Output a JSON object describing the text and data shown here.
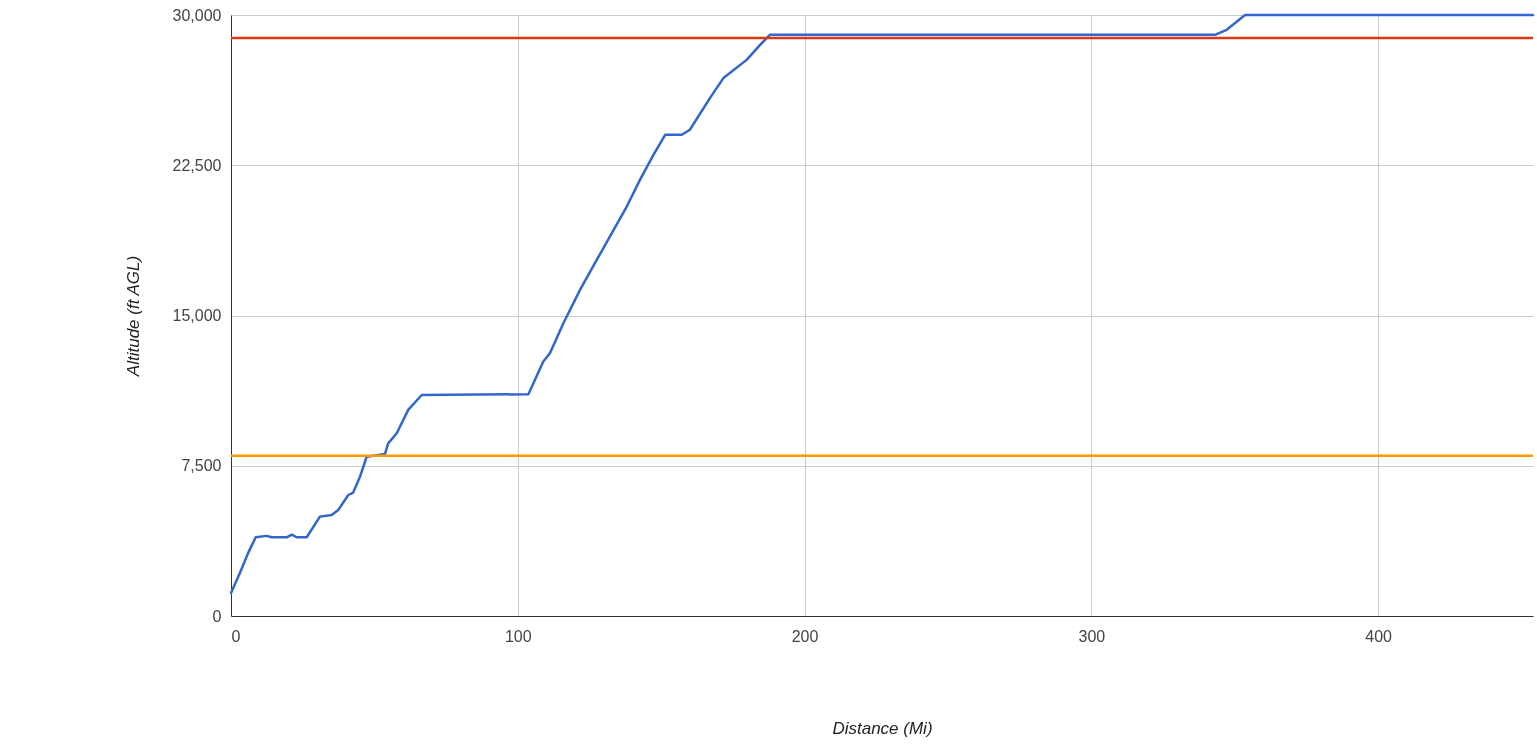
{
  "chart_data": {
    "type": "line",
    "xlabel": "Distance (Mi)",
    "ylabel": "Altitude (ft AGL)",
    "x": [
      0,
      3.1,
      6.0,
      8.6,
      12.4,
      14.2,
      19.4,
      21.2,
      22.9,
      26.4,
      31.0,
      35.1,
      37.4,
      40.9,
      42.6,
      45.0,
      47.3,
      53.7,
      54.8,
      57.8,
      61.8,
      66.5,
      103.7,
      108.9,
      111.2,
      115.9,
      121.7,
      126.9,
      132.1,
      138.0,
      142.6,
      147.3,
      151.4,
      157.2,
      160.0,
      167.0,
      171.7,
      179.8,
      184.5,
      187.9,
      343.1,
      347.2,
      353.6,
      454
    ],
    "series": [
      {
        "color": "#3366cc",
        "values": [
          1150,
          2150,
          3150,
          3930,
          4000,
          3930,
          3930,
          4060,
          3930,
          3930,
          4960,
          5040,
          5290,
          6040,
          6160,
          6960,
          7950,
          8090,
          8620,
          9120,
          10290,
          11030,
          11070,
          12700,
          13120,
          14610,
          16280,
          17610,
          18940,
          20440,
          21770,
          23020,
          24020,
          24020,
          24270,
          25850,
          26850,
          27760,
          28510,
          29010,
          29010,
          29260,
          30000,
          30000
        ]
      }
    ],
    "ref_lines": [
      {
        "axis": "y",
        "value": 28850,
        "color": "#dc3912"
      },
      {
        "axis": "y",
        "value": 8000,
        "color": "#ff9900"
      }
    ],
    "xlim": [
      0,
      454
    ],
    "xticks": [
      0,
      100,
      200,
      300,
      400
    ],
    "ylim": [
      0,
      30000
    ],
    "yticks": [
      0,
      {
        "value": 7500,
        "label": "7,500"
      },
      {
        "value": 15000,
        "label": "15,000"
      },
      {
        "value": 22500,
        "label": "22,500"
      },
      {
        "value": 30000,
        "label": "30,000"
      }
    ],
    "grid": true,
    "marker": "none",
    "line_style": "solid"
  }
}
